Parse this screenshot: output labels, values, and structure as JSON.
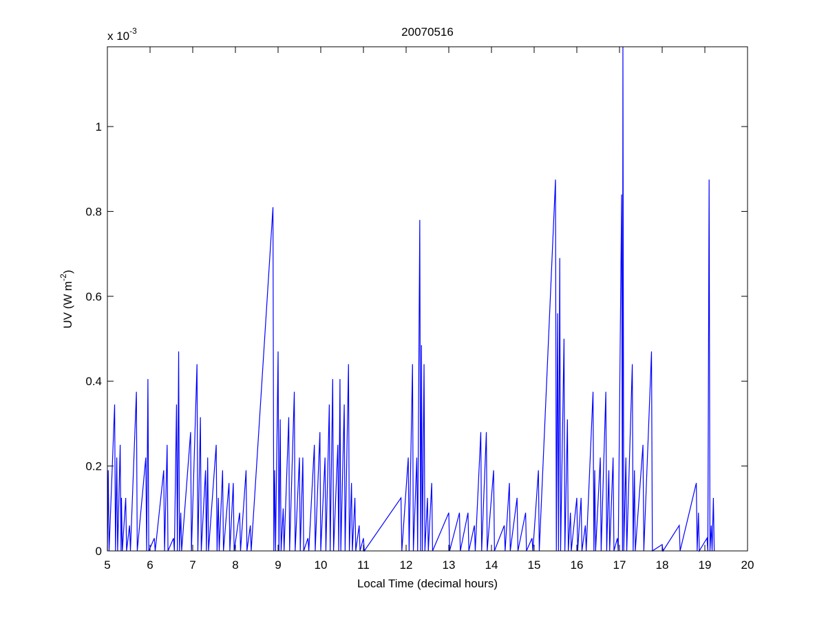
{
  "chart_data": {
    "type": "line",
    "title": "20070516",
    "x_label": "Local Time (decimal hours)",
    "y_label": {
      "text": "UV (W m",
      "exponent": "-2",
      "close": ")"
    },
    "y_multiplier": {
      "base": "x 10",
      "exponent": "-3"
    },
    "xlim": [
      5,
      20
    ],
    "ylim": [
      0,
      1.188
    ],
    "xticks": [
      5,
      6,
      7,
      8,
      9,
      10,
      11,
      12,
      13,
      14,
      15,
      16,
      17,
      18,
      19,
      20
    ],
    "yticks": [
      0,
      0.2,
      0.4,
      0.6,
      0.8,
      1
    ],
    "grid": false,
    "series": [
      {
        "name": "UV",
        "color": "#0000ff",
        "x": [
          5,
          5.02,
          5.04,
          5.17,
          5.19,
          5.22,
          5.24,
          5.3,
          5.32,
          5.33,
          5.35,
          5.43,
          5.45,
          5.52,
          5.54,
          5.68,
          5.7,
          5.9,
          5.92,
          5.95,
          5.97,
          6.1,
          6.12,
          6.32,
          6.34,
          6.4,
          6.42,
          6.55,
          6.57,
          6.62,
          6.64,
          6.67,
          6.69,
          6.72,
          6.74,
          6.95,
          6.97,
          7.1,
          7.12,
          7.18,
          7.2,
          7.3,
          7.32,
          7.35,
          7.37,
          7.55,
          7.57,
          7.6,
          7.62,
          7.7,
          7.72,
          7.85,
          7.87,
          7.95,
          7.97,
          8.1,
          8.12,
          8.25,
          8.27,
          8.35,
          8.37,
          8.88,
          8.9,
          8.92,
          8.94,
          9.0,
          9.02,
          9.05,
          9.07,
          9.12,
          9.14,
          9.25,
          9.27,
          9.38,
          9.4,
          9.5,
          9.52,
          9.58,
          9.6,
          9.7,
          9.72,
          9.85,
          9.87,
          9.98,
          10.0,
          10.1,
          10.12,
          10.2,
          10.22,
          10.28,
          10.3,
          10.4,
          10.42,
          10.45,
          10.47,
          10.55,
          10.57,
          10.65,
          10.67,
          10.72,
          10.74,
          10.8,
          10.82,
          10.9,
          10.92,
          11.0,
          11.02,
          11.88,
          11.9,
          12.05,
          12.07,
          12.15,
          12.17,
          12.25,
          12.27,
          12.32,
          12.34,
          12.36,
          12.38,
          12.42,
          12.44,
          12.5,
          12.52,
          12.6,
          12.62,
          13.0,
          13.02,
          13.25,
          13.27,
          13.45,
          13.47,
          13.6,
          13.62,
          13.75,
          13.77,
          13.88,
          13.9,
          14.05,
          14.07,
          14.3,
          14.32,
          14.42,
          14.44,
          14.6,
          14.62,
          14.8,
          14.82,
          14.95,
          14.97,
          15.1,
          15.12,
          15.5,
          15.52,
          15.55,
          15.57,
          15.6,
          15.62,
          15.7,
          15.72,
          15.78,
          15.8,
          15.85,
          15.87,
          16.0,
          16.02,
          16.1,
          16.12,
          16.2,
          16.22,
          16.38,
          16.4,
          16.42,
          16.44,
          16.55,
          16.57,
          16.68,
          16.7,
          16.75,
          16.77,
          16.85,
          16.87,
          16.95,
          16.97,
          17.05,
          17.07,
          17.08,
          17.1,
          17.15,
          17.17,
          17.3,
          17.32,
          17.35,
          17.37,
          17.55,
          17.57,
          17.75,
          17.77,
          18.0,
          18.02,
          18.4,
          18.42,
          18.8,
          18.82,
          18.85,
          18.87,
          19.05,
          19.07,
          19.1,
          19.12,
          19.15,
          19.17,
          19.2,
          19.22
        ],
        "values": [
          0,
          0.19,
          0,
          0.345,
          0,
          0.22,
          0,
          0.25,
          0,
          0.125,
          0,
          0.125,
          0,
          0.06,
          0,
          0.375,
          0,
          0.22,
          0,
          0.405,
          0,
          0.03,
          0,
          0.19,
          0,
          0.25,
          0,
          0.03,
          0,
          0.345,
          0,
          0.47,
          0,
          0.09,
          0,
          0.28,
          0,
          0.44,
          0,
          0.315,
          0,
          0.19,
          0,
          0.22,
          0,
          0.25,
          0,
          0.125,
          0,
          0.19,
          0,
          0.16,
          0,
          0.16,
          0,
          0.09,
          0,
          0.19,
          0,
          0.06,
          0,
          0.81,
          0,
          0.19,
          0,
          0.47,
          0,
          0.31,
          0,
          0.1,
          0,
          0.315,
          0,
          0.375,
          0,
          0.22,
          0,
          0.22,
          0,
          0.03,
          0,
          0.25,
          0,
          0.28,
          0,
          0.22,
          0,
          0.345,
          0,
          0.405,
          0,
          0.25,
          0,
          0.405,
          0,
          0.345,
          0,
          0.44,
          0,
          0.16,
          0,
          0.125,
          0,
          0.06,
          0,
          0.03,
          0,
          0.125,
          0,
          0.22,
          0,
          0.44,
          0,
          0.22,
          0,
          0.78,
          0,
          0.485,
          0,
          0.44,
          0,
          0.125,
          0,
          0.16,
          0,
          0.09,
          0,
          0.09,
          0,
          0.09,
          0,
          0.06,
          0,
          0.28,
          0,
          0.28,
          0,
          0.19,
          0,
          0.06,
          0,
          0.16,
          0,
          0.125,
          0,
          0.09,
          0,
          0.03,
          0,
          0.19,
          0,
          0.875,
          0,
          0.56,
          0,
          0.69,
          0,
          0.5,
          0,
          0.31,
          0,
          0.09,
          0,
          0.125,
          0,
          0.125,
          0,
          0.06,
          0,
          0.375,
          0,
          0.19,
          0,
          0.22,
          0,
          0.375,
          0,
          0.19,
          0,
          0.22,
          0,
          0.03,
          0,
          0.84,
          0,
          1.188,
          0,
          0.22,
          0,
          0.44,
          0,
          0.19,
          0,
          0.25,
          0,
          0.47,
          0,
          0.015,
          0,
          0.06,
          0,
          0.16,
          0,
          0.09,
          0,
          0.03,
          0,
          0.875,
          0,
          0.06,
          0,
          0.125,
          0
        ]
      }
    ]
  }
}
